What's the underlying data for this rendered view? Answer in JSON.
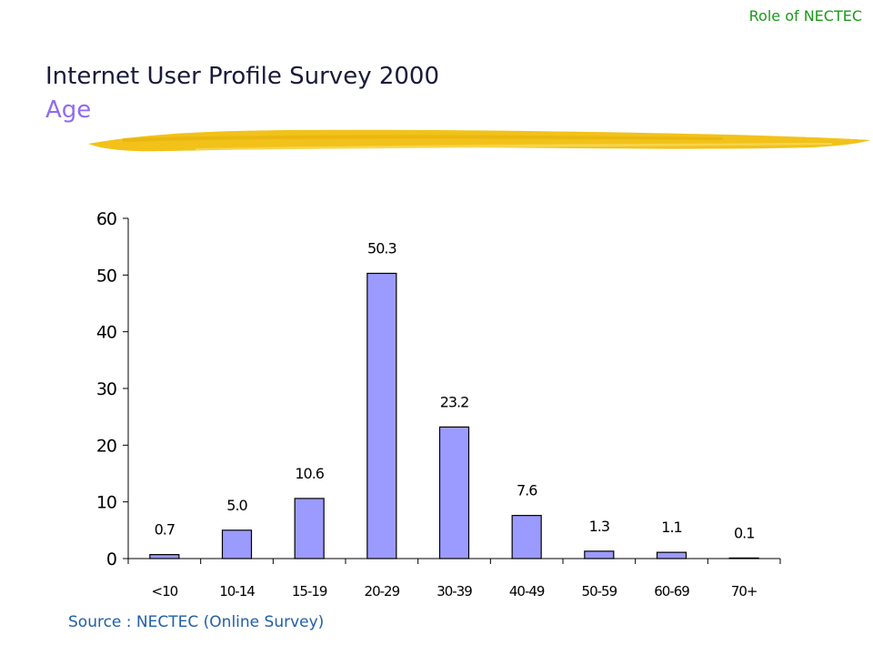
{
  "header": {
    "corner_tag": "Role of NECTEC",
    "title": "Internet User Profile Survey 2000",
    "subtitle": "Age"
  },
  "source_note": "Source : NECTEC (Online Survey)",
  "colors": {
    "bar_fill": "#9b9bff",
    "bar_stroke": "#000000",
    "brush": "#f2c21a",
    "title": "#1a1a3a",
    "subtitle": "#8f6cf0",
    "corner_tag": "#1a9a1a",
    "source": "#1f5fa8"
  },
  "chart_data": {
    "type": "bar",
    "title": "",
    "xlabel": "",
    "ylabel": "",
    "categories": [
      "<10",
      "10-14",
      "15-19",
      "20-29",
      "30-39",
      "40-49",
      "50-59",
      "60-69",
      "70+"
    ],
    "values": [
      0.7,
      5.0,
      10.6,
      50.3,
      23.2,
      7.6,
      1.3,
      1.1,
      0.1
    ],
    "data_labels": [
      "0.7",
      "5.0",
      "10.6",
      "50.3",
      "23.2",
      "7.6",
      "1.3",
      "1.1",
      "0.1"
    ],
    "ylim": [
      0,
      60
    ],
    "yticks": [
      0,
      10,
      20,
      30,
      40,
      50,
      60
    ],
    "grid": false,
    "legend": "none"
  }
}
